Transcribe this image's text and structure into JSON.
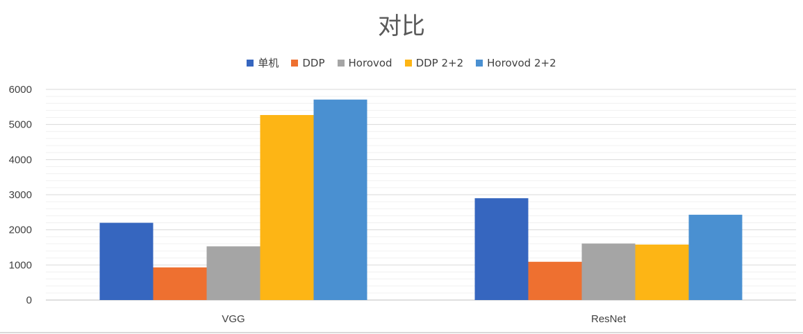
{
  "chart_data": {
    "type": "bar",
    "title": "对比",
    "categories": [
      "VGG",
      "ResNet"
    ],
    "series": [
      {
        "name": "单机",
        "color": "#3666BF",
        "values": [
          2200,
          2900
        ]
      },
      {
        "name": "DDP",
        "color": "#EE7030",
        "values": [
          930,
          1090
        ]
      },
      {
        "name": "Horovod",
        "color": "#A5A5A5",
        "values": [
          1530,
          1610
        ]
      },
      {
        "name": "DDP 2+2",
        "color": "#FDB515",
        "values": [
          5270,
          1580
        ]
      },
      {
        "name": "Horovod 2+2",
        "color": "#4A90D1",
        "values": [
          5710,
          2430
        ]
      }
    ],
    "ylim": [
      0,
      6000
    ],
    "yticks": [
      "0",
      "1000",
      "2000",
      "3000",
      "4000",
      "5000",
      "6000"
    ],
    "grid": true,
    "legend_position": "top"
  }
}
